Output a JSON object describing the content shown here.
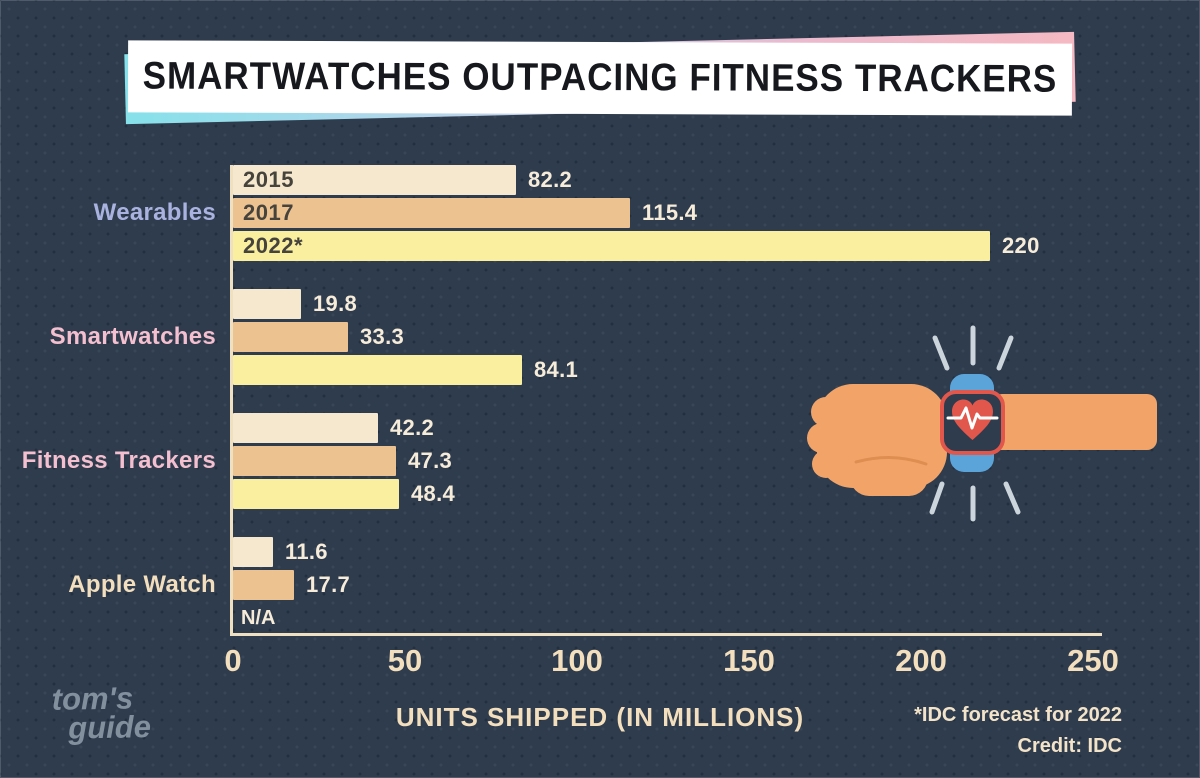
{
  "title": "SMARTWATCHES OUTPACING FITNESS TRACKERS",
  "chart_data": {
    "type": "bar",
    "orientation": "horizontal",
    "title": "SMARTWATCHES OUTPACING FITNESS TRACKERS",
    "categories": [
      "Wearables",
      "Smartwatches",
      "Fitness Trackers",
      "Apple Watch"
    ],
    "category_label_colors": [
      "#aab3e0",
      "#f4bfce",
      "#f4bfce",
      "#f3dfbd"
    ],
    "series": [
      {
        "name": "2015",
        "color": "#f6e7cf",
        "values": [
          82.2,
          19.8,
          42.2,
          11.6
        ]
      },
      {
        "name": "2017",
        "color": "#edc291",
        "values": [
          115.4,
          33.3,
          47.3,
          17.7
        ]
      },
      {
        "name": "2022*",
        "color": "#f9ef9e",
        "values": [
          220,
          84.1,
          48.4,
          null
        ]
      }
    ],
    "na_label": "N/A",
    "series_labels_in_first_group": true,
    "xlabel": "UNITS SHIPPED (IN MILLIONS)",
    "x_ticks": [
      "0",
      "50",
      "100",
      "150",
      "200",
      "250"
    ],
    "xlim": [
      0,
      250
    ],
    "grid": false,
    "legend_position": "in-bar-first-group"
  },
  "footnote": {
    "line1": "*IDC forecast for 2022",
    "line2": "Credit: IDC"
  },
  "logo": {
    "line1": "tom's",
    "line2": "guide"
  },
  "colors": {
    "background": "#2e3c4e",
    "axis": "#efe0c2",
    "value_label": "#f6ecd9",
    "tick_label": "#f3dfbd",
    "banner_background": "#ffffff",
    "banner_text": "#16181d",
    "banner_gradient_start": "#86e1ea",
    "banner_gradient_end": "#f4b9c2"
  },
  "illustration": {
    "name": "fist-with-smartwatch",
    "skin": "#f2a468",
    "band": "#5ba4d9",
    "face_background": "#2e3c4e",
    "face_border": "#e2574b",
    "heart": "#e2574b",
    "ecg_line": "#ffffff",
    "motion_lines": "#cdd5dc"
  }
}
